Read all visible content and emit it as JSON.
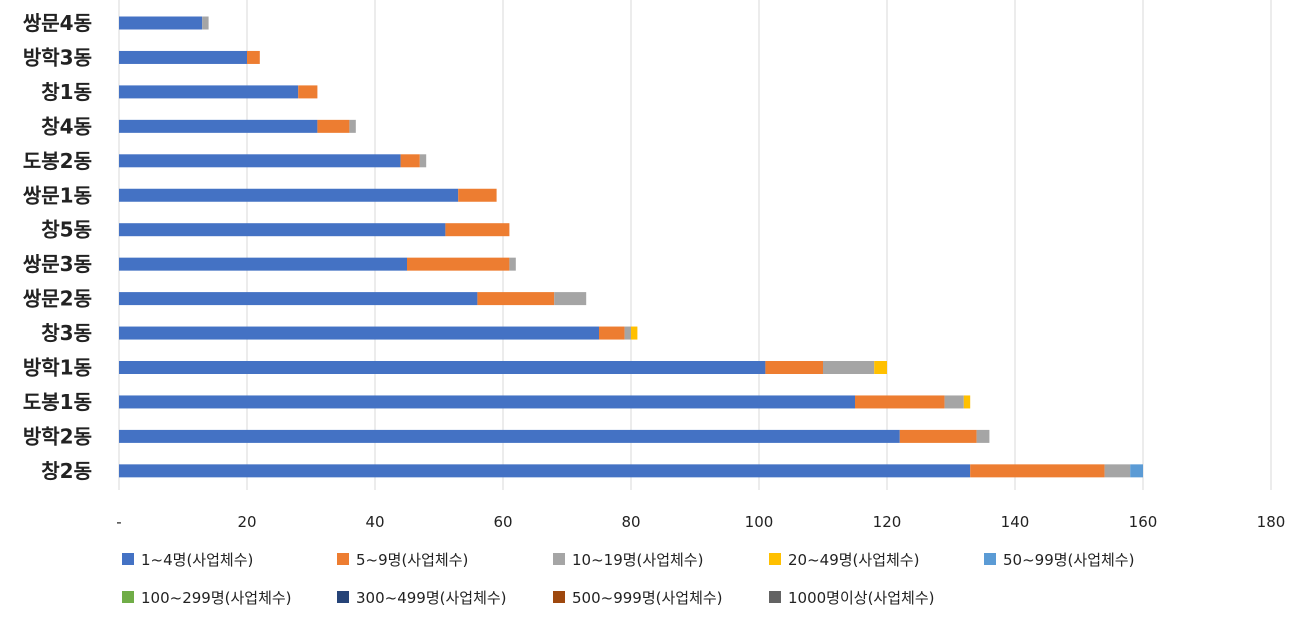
{
  "chart_data": {
    "type": "bar",
    "orientation": "horizontal",
    "stacked": true,
    "title": "",
    "xlabel": "",
    "ylabel": "",
    "xlim": [
      0,
      180
    ],
    "x_ticks": [
      "-",
      "20",
      "40",
      "60",
      "80",
      "100",
      "120",
      "140",
      "160",
      "180"
    ],
    "grid": true,
    "legend_position": "bottom",
    "categories": [
      "쌍문4동",
      "방학3동",
      "창1동",
      "창4동",
      "도봉2동",
      "쌍문1동",
      "창5동",
      "쌍문3동",
      "쌍문2동",
      "창3동",
      "방학1동",
      "도봉1동",
      "방학2동",
      "창2동"
    ],
    "series": [
      {
        "name": "1~4명(사업체수)",
        "color": "#4472C4",
        "values": [
          13,
          20,
          28,
          31,
          44,
          53,
          51,
          45,
          56,
          75,
          101,
          115,
          122,
          133
        ]
      },
      {
        "name": "5~9명(사업체수)",
        "color": "#ED7D31",
        "values": [
          0,
          2,
          3,
          5,
          3,
          6,
          10,
          16,
          12,
          4,
          9,
          14,
          12,
          21
        ]
      },
      {
        "name": "10~19명(사업체수)",
        "color": "#A5A5A5",
        "values": [
          1,
          0,
          0,
          1,
          1,
          0,
          0,
          1,
          5,
          1,
          8,
          3,
          2,
          4
        ]
      },
      {
        "name": "20~49명(사업체수)",
        "color": "#FFC000",
        "values": [
          0,
          0,
          0,
          0,
          0,
          0,
          0,
          0,
          0,
          1,
          2,
          1,
          0,
          0
        ]
      },
      {
        "name": "50~99명(사업체수)",
        "color": "#5B9BD5",
        "values": [
          0,
          0,
          0,
          0,
          0,
          0,
          0,
          0,
          0,
          0,
          0,
          0,
          0,
          2
        ]
      },
      {
        "name": "100~299명(사업체수)",
        "color": "#70AD47",
        "values": [
          0,
          0,
          0,
          0,
          0,
          0,
          0,
          0,
          0,
          0,
          0,
          0,
          0,
          0
        ]
      },
      {
        "name": "300~499명(사업체수)",
        "color": "#264478",
        "values": [
          0,
          0,
          0,
          0,
          0,
          0,
          0,
          0,
          0,
          0,
          0,
          0,
          0,
          0
        ]
      },
      {
        "name": "500~999명(사업체수)",
        "color": "#9E480E",
        "values": [
          0,
          0,
          0,
          0,
          0,
          0,
          0,
          0,
          0,
          0,
          0,
          0,
          0,
          0
        ]
      },
      {
        "name": "1000명이상(사업체수)",
        "color": "#636363",
        "values": [
          0,
          0,
          0,
          0,
          0,
          0,
          0,
          0,
          0,
          0,
          0,
          0,
          0,
          0
        ]
      }
    ]
  }
}
